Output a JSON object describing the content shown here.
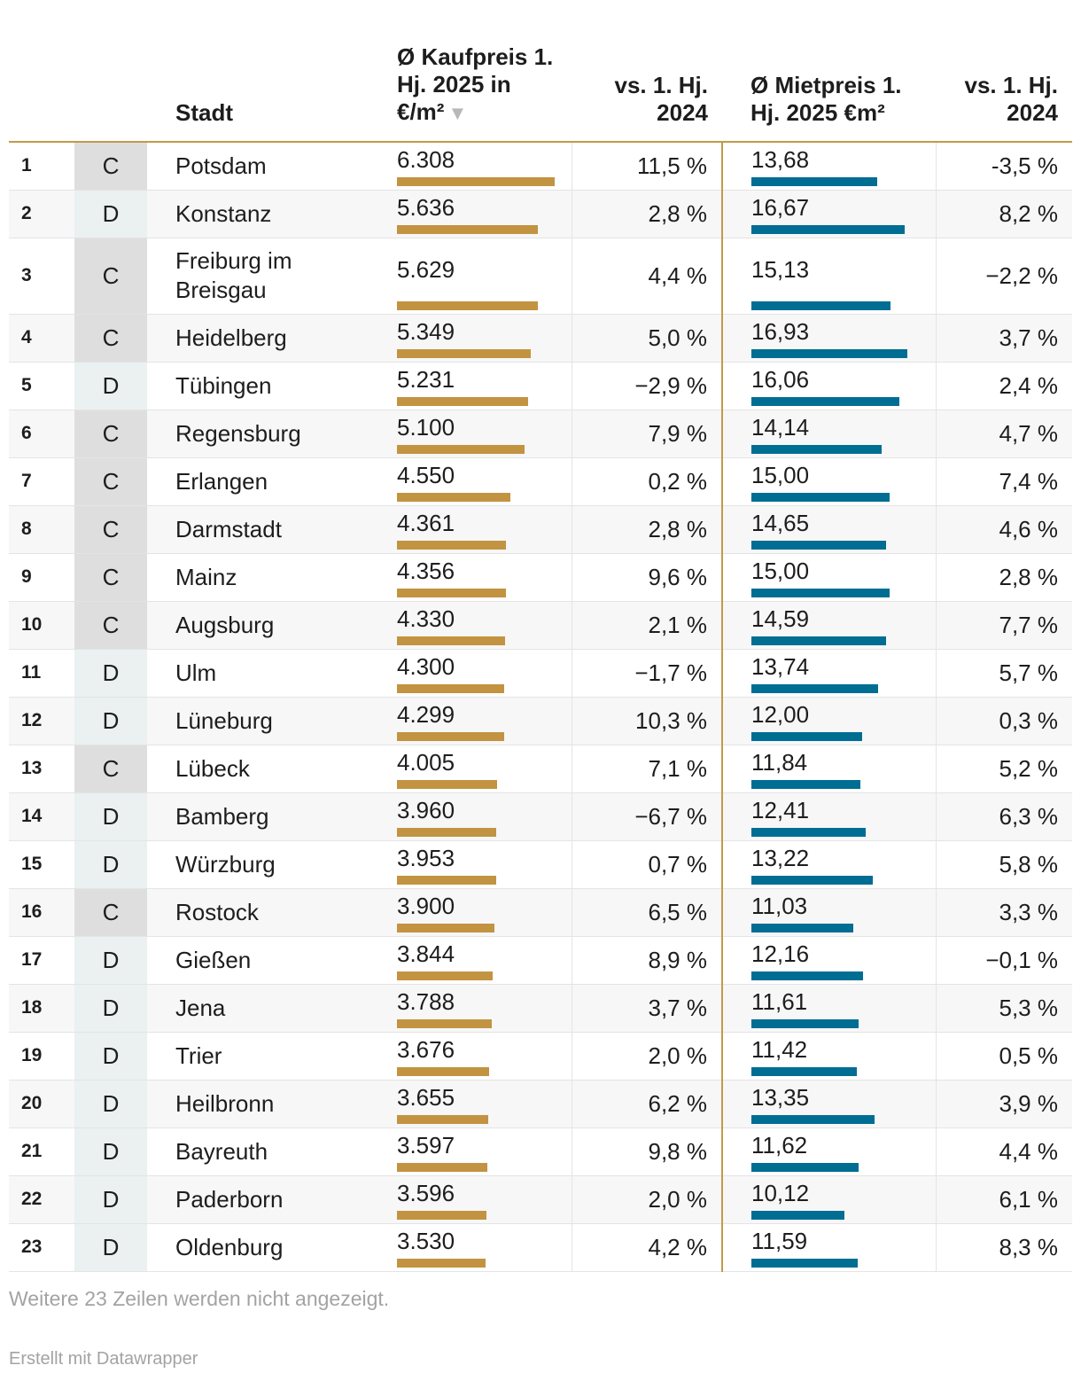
{
  "header": {
    "col_rank": "",
    "col_type": "",
    "col_city": "Stadt",
    "col_buy": "Ø Kaufpreis 1. Hj. 2025 in €/m²",
    "col_buy_chg": "vs. 1. Hj. 2024",
    "col_rent": "Ø Mietpreis 1. Hj. 2025 €m²",
    "col_rent_chg": "vs. 1. Hj. 2024",
    "sort_icon": "sort-descending-icon"
  },
  "colors": {
    "buy_bar": "#c29341",
    "rent_bar": "#006d92",
    "type_c_bg": "#dedede",
    "type_d_bg": "#ebf0f0",
    "header_rule": "#c29a4a"
  },
  "chart_data": {
    "type": "table",
    "columns": [
      "",
      "",
      "Stadt",
      "Ø Kaufpreis 1. Hj. 2025 in €/m²",
      "vs. 1. Hj. 2024",
      "Ø Mietpreis 1. Hj. 2025 €m²",
      "vs. 1. Hj. 2024"
    ],
    "buy_max": 6308,
    "rent_max": 16.93,
    "rows": [
      {
        "rank": "1",
        "type": "C",
        "city": "Potsdam",
        "buy": "6.308",
        "buy_value": 6308,
        "buy_chg": "11,5 %",
        "rent": "13,68",
        "rent_value": 13.68,
        "rent_chg": "-3,5 %"
      },
      {
        "rank": "2",
        "type": "D",
        "city": "Konstanz",
        "buy": "5.636",
        "buy_value": 5636,
        "buy_chg": "2,8 %",
        "rent": "16,67",
        "rent_value": 16.67,
        "rent_chg": "8,2 %"
      },
      {
        "rank": "3",
        "type": "C",
        "city": "Freiburg im Breisgau",
        "buy": "5.629",
        "buy_value": 5629,
        "buy_chg": "4,4 %",
        "rent": "15,13",
        "rent_value": 15.13,
        "rent_chg": "−2,2 %"
      },
      {
        "rank": "4",
        "type": "C",
        "city": "Heidelberg",
        "buy": "5.349",
        "buy_value": 5349,
        "buy_chg": "5,0 %",
        "rent": "16,93",
        "rent_value": 16.93,
        "rent_chg": "3,7 %"
      },
      {
        "rank": "5",
        "type": "D",
        "city": "Tübingen",
        "buy": "5.231",
        "buy_value": 5231,
        "buy_chg": "−2,9 %",
        "rent": "16,06",
        "rent_value": 16.06,
        "rent_chg": "2,4 %"
      },
      {
        "rank": "6",
        "type": "C",
        "city": "Regensburg",
        "buy": "5.100",
        "buy_value": 5100,
        "buy_chg": "7,9 %",
        "rent": "14,14",
        "rent_value": 14.14,
        "rent_chg": "4,7 %"
      },
      {
        "rank": "7",
        "type": "C",
        "city": "Erlangen",
        "buy": "4.550",
        "buy_value": 4550,
        "buy_chg": "0,2 %",
        "rent": "15,00",
        "rent_value": 15.0,
        "rent_chg": "7,4 %"
      },
      {
        "rank": "8",
        "type": "C",
        "city": "Darmstadt",
        "buy": "4.361",
        "buy_value": 4361,
        "buy_chg": "2,8 %",
        "rent": "14,65",
        "rent_value": 14.65,
        "rent_chg": "4,6 %"
      },
      {
        "rank": "9",
        "type": "C",
        "city": "Mainz",
        "buy": "4.356",
        "buy_value": 4356,
        "buy_chg": "9,6 %",
        "rent": "15,00",
        "rent_value": 15.0,
        "rent_chg": "2,8 %"
      },
      {
        "rank": "10",
        "type": "C",
        "city": "Augsburg",
        "buy": "4.330",
        "buy_value": 4330,
        "buy_chg": "2,1 %",
        "rent": "14,59",
        "rent_value": 14.59,
        "rent_chg": "7,7 %"
      },
      {
        "rank": "11",
        "type": "D",
        "city": "Ulm",
        "buy": "4.300",
        "buy_value": 4300,
        "buy_chg": "−1,7 %",
        "rent": "13,74",
        "rent_value": 13.74,
        "rent_chg": "5,7 %"
      },
      {
        "rank": "12",
        "type": "D",
        "city": "Lüneburg",
        "buy": "4.299",
        "buy_value": 4299,
        "buy_chg": "10,3 %",
        "rent": "12,00",
        "rent_value": 12.0,
        "rent_chg": "0,3 %"
      },
      {
        "rank": "13",
        "type": "C",
        "city": "Lübeck",
        "buy": "4.005",
        "buy_value": 4005,
        "buy_chg": "7,1 %",
        "rent": "11,84",
        "rent_value": 11.84,
        "rent_chg": "5,2 %"
      },
      {
        "rank": "14",
        "type": "D",
        "city": "Bamberg",
        "buy": "3.960",
        "buy_value": 3960,
        "buy_chg": "−6,7 %",
        "rent": "12,41",
        "rent_value": 12.41,
        "rent_chg": "6,3 %"
      },
      {
        "rank": "15",
        "type": "D",
        "city": "Würzburg",
        "buy": "3.953",
        "buy_value": 3953,
        "buy_chg": "0,7 %",
        "rent": "13,22",
        "rent_value": 13.22,
        "rent_chg": "5,8 %"
      },
      {
        "rank": "16",
        "type": "C",
        "city": "Rostock",
        "buy": "3.900",
        "buy_value": 3900,
        "buy_chg": "6,5 %",
        "rent": "11,03",
        "rent_value": 11.03,
        "rent_chg": "3,3 %"
      },
      {
        "rank": "17",
        "type": "D",
        "city": "Gießen",
        "buy": "3.844",
        "buy_value": 3844,
        "buy_chg": "8,9 %",
        "rent": "12,16",
        "rent_value": 12.16,
        "rent_chg": "−0,1 %"
      },
      {
        "rank": "18",
        "type": "D",
        "city": "Jena",
        "buy": "3.788",
        "buy_value": 3788,
        "buy_chg": "3,7 %",
        "rent": "11,61",
        "rent_value": 11.61,
        "rent_chg": "5,3 %"
      },
      {
        "rank": "19",
        "type": "D",
        "city": "Trier",
        "buy": "3.676",
        "buy_value": 3676,
        "buy_chg": "2,0 %",
        "rent": "11,42",
        "rent_value": 11.42,
        "rent_chg": "0,5 %"
      },
      {
        "rank": "20",
        "type": "D",
        "city": "Heilbronn",
        "buy": "3.655",
        "buy_value": 3655,
        "buy_chg": "6,2 %",
        "rent": "13,35",
        "rent_value": 13.35,
        "rent_chg": "3,9 %"
      },
      {
        "rank": "21",
        "type": "D",
        "city": "Bayreuth",
        "buy": "3.597",
        "buy_value": 3597,
        "buy_chg": "9,8 %",
        "rent": "11,62",
        "rent_value": 11.62,
        "rent_chg": "4,4 %"
      },
      {
        "rank": "22",
        "type": "D",
        "city": "Paderborn",
        "buy": "3.596",
        "buy_value": 3596,
        "buy_chg": "2,0 %",
        "rent": "10,12",
        "rent_value": 10.12,
        "rent_chg": "6,1 %"
      },
      {
        "rank": "23",
        "type": "D",
        "city": "Oldenburg",
        "buy": "3.530",
        "buy_value": 3530,
        "buy_chg": "4,2 %",
        "rent": "11,59",
        "rent_value": 11.59,
        "rent_chg": "8,3 %"
      }
    ]
  },
  "footer": {
    "more_rows": "Weitere 23 Zeilen werden nicht angezeigt.",
    "credit": "Erstellt mit Datawrapper"
  }
}
